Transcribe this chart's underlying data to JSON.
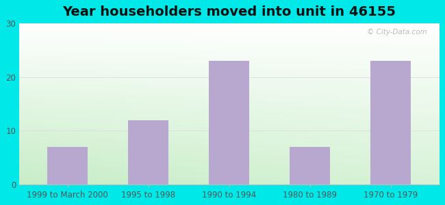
{
  "title": "Year householders moved into unit in 46155",
  "categories": [
    "1999 to March 2000",
    "1995 to 1998",
    "1990 to 1994",
    "1980 to 1989",
    "1970 to 1979"
  ],
  "values": [
    7,
    12,
    23,
    7,
    23
  ],
  "bar_color": "#b8a8d0",
  "ylim": [
    0,
    30
  ],
  "yticks": [
    0,
    10,
    20,
    30
  ],
  "background_outer": "#00e8e8",
  "title_fontsize": 14,
  "tick_fontsize": 8.5,
  "watermark": "© City-Data.com",
  "grid_color": "#dddddd",
  "spine_color": "#bbbbbb",
  "tick_color": "#555555"
}
